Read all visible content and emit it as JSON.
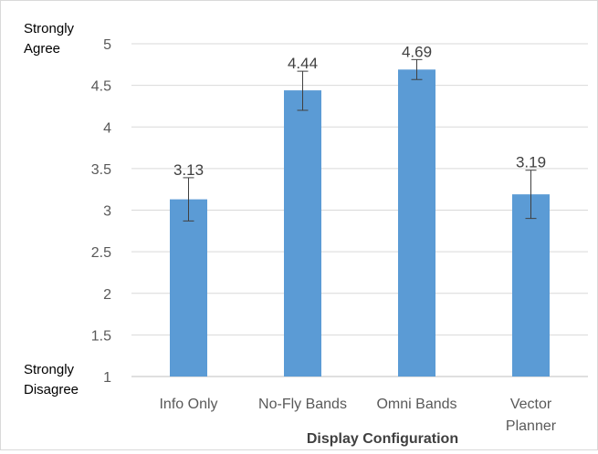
{
  "chart_data": {
    "type": "bar",
    "categories": [
      "Info Only",
      "No-Fly Bands",
      "Omni Bands",
      "Vector Planner"
    ],
    "category_lines": [
      [
        "Info Only"
      ],
      [
        "No-Fly Bands"
      ],
      [
        "Omni Bands"
      ],
      [
        "Vector",
        "Planner"
      ]
    ],
    "values": [
      3.13,
      4.44,
      4.69,
      3.19
    ],
    "value_labels": [
      "3.13",
      "4.44",
      "4.69",
      "3.19"
    ],
    "error_low": [
      2.87,
      4.2,
      4.57,
      2.9
    ],
    "error_high": [
      3.39,
      4.67,
      4.81,
      3.48
    ],
    "xlabel": "Display Configuration",
    "ylabel": "",
    "ylim": [
      1,
      5
    ],
    "yticks": [
      "1",
      "1.5",
      "2",
      "2.5",
      "3",
      "3.5",
      "4",
      "4.5",
      "5"
    ],
    "y_anchor_top": [
      "Strongly",
      "Agree"
    ],
    "y_anchor_bottom": [
      "Strongly",
      "Disagree"
    ],
    "grid": true,
    "bar_color": "#5b9bd5"
  }
}
